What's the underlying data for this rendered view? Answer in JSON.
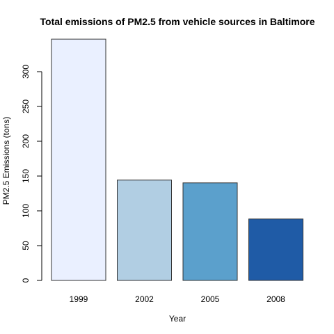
{
  "chart_data": {
    "type": "bar",
    "title": "Total emissions of PM2.5 from vehicle sources in Baltimore",
    "xlabel": "Year",
    "ylabel": "PM2.5 Emissions (tons)",
    "categories": [
      "1999",
      "2002",
      "2005",
      "2008"
    ],
    "values": [
      346.8,
      144.2,
      140.2,
      88.3
    ],
    "colors": [
      "#eaf0ff",
      "#b1cee3",
      "#5ba0cc",
      "#1f5ba6"
    ],
    "ylim": [
      0,
      350
    ],
    "yticks": [
      0,
      50,
      100,
      150,
      200,
      250,
      300
    ],
    "grid": false,
    "legend": "none"
  }
}
